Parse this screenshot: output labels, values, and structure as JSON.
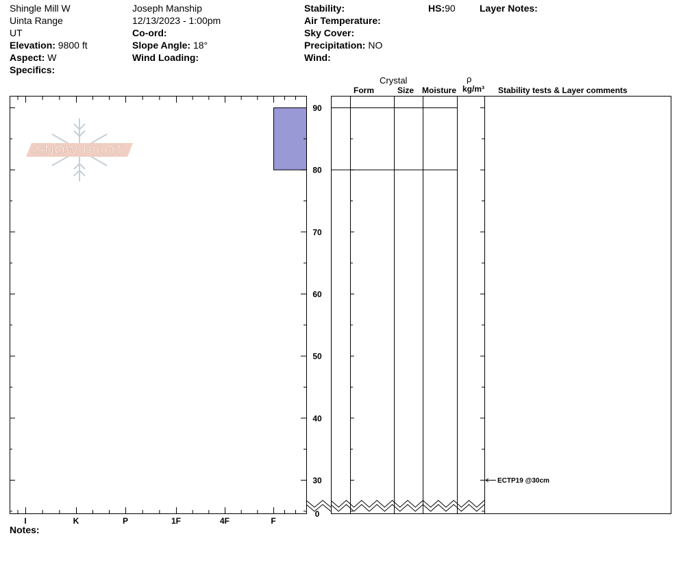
{
  "header": {
    "location": "Shingle Mill W",
    "range": "Uinta Range",
    "state": "UT",
    "elevation_label": "Elevation:",
    "elevation_value": "9800 ft",
    "aspect_label": "Aspect:",
    "aspect_value": "W",
    "specifics_label": "Specifics:",
    "observer": "Joseph Manship",
    "datetime": "12/13/2023 - 1:00pm",
    "coord_label": "Co-ord:",
    "slope_label": "Slope Angle:",
    "slope_value": "18°",
    "wind_loading_label": "Wind Loading:",
    "stability_label": "Stability:",
    "air_temp_label": "Air Temperature:",
    "sky_cover_label": "Sky Cover:",
    "precip_label": "Precipitation:",
    "precip_value": "NO",
    "wind_label": "Wind:",
    "hs_label": "HS:",
    "hs_value": "90",
    "layer_notes_label": "Layer Notes:"
  },
  "logo_text": "SNOW PILOT",
  "columns": {
    "crystal": "Crystal",
    "form": "Form",
    "size": "Size",
    "moisture": "Moisture",
    "rho": "ρ",
    "density_unit": "kg/m³",
    "comments": "Stability tests & Layer comments"
  },
  "notes_label": "Notes:",
  "colors": {
    "layer_fill": "#9999d6",
    "logo": "#e8c4b8"
  },
  "chart_data": {
    "type": "bar",
    "hardness_ticks": [
      "I",
      "K",
      "P",
      "1F",
      "4F",
      "F"
    ],
    "height_ticks": [
      90,
      80,
      70,
      60,
      50,
      40,
      30,
      0
    ],
    "ylim": [
      0,
      90
    ],
    "layers": [
      {
        "top": 90,
        "bottom": 80,
        "hardness": "F"
      }
    ],
    "comments": [
      {
        "height": 30,
        "text": "ECTP19 @30cm"
      }
    ]
  }
}
